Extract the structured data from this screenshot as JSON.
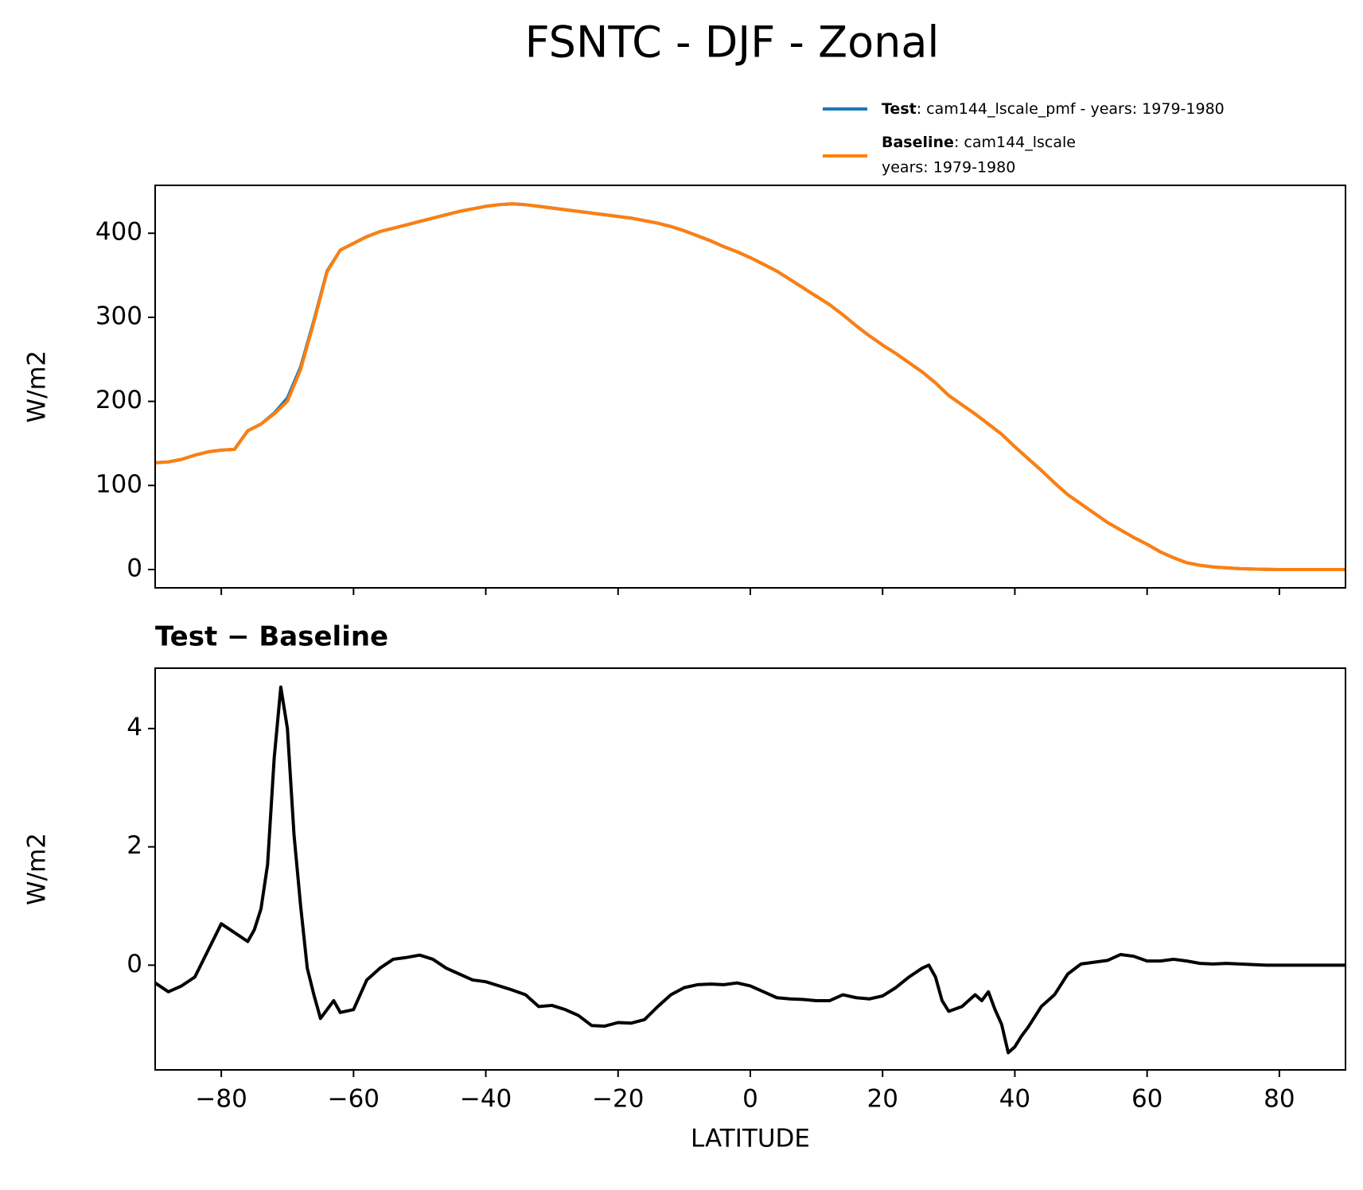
{
  "title": "FSNTC - DJF - Zonal",
  "chart_data": [
    {
      "type": "line",
      "ylabel": "W/m2",
      "x": [
        -90,
        -88,
        -86,
        -84,
        -82,
        -80,
        -78,
        -76,
        -74,
        -72,
        -70,
        -68,
        -66,
        -64,
        -62,
        -60,
        -58,
        -56,
        -54,
        -52,
        -50,
        -48,
        -46,
        -44,
        -42,
        -40,
        -38,
        -36,
        -34,
        -32,
        -30,
        -28,
        -26,
        -24,
        -22,
        -20,
        -18,
        -16,
        -14,
        -12,
        -10,
        -8,
        -6,
        -4,
        -2,
        0,
        2,
        4,
        6,
        8,
        10,
        12,
        14,
        16,
        18,
        20,
        22,
        24,
        26,
        28,
        30,
        32,
        34,
        36,
        38,
        40,
        42,
        44,
        46,
        48,
        50,
        52,
        54,
        56,
        58,
        60,
        62,
        64,
        66,
        68,
        70,
        72,
        74,
        76,
        78,
        80,
        82,
        84,
        86,
        88,
        90
      ],
      "series": [
        {
          "name": "Test",
          "label": ": cam144_lscale_pmf - years: 1979-1980",
          "color": "#1f77b4",
          "values": [
            127,
            128,
            131,
            136,
            140,
            142,
            143,
            165,
            173,
            186,
            204,
            241,
            296,
            355,
            380,
            388,
            396,
            402,
            406,
            410,
            414,
            418,
            422,
            426,
            429,
            432,
            434,
            435,
            434,
            432,
            430,
            428,
            426,
            424,
            422,
            420,
            418,
            415,
            412,
            408,
            403,
            397,
            391,
            384,
            378,
            371,
            363,
            355,
            345,
            335,
            325,
            315,
            303,
            290,
            278,
            267,
            257,
            246,
            235,
            222,
            207,
            196,
            185,
            173,
            161,
            146,
            132,
            118,
            103,
            89,
            78,
            67,
            56,
            47,
            38,
            30,
            21,
            14,
            8,
            5,
            3,
            2,
            1,
            0.5,
            0.2,
            0,
            0,
            0,
            0,
            0,
            0
          ]
        },
        {
          "name": "Baseline",
          "label_lines": [
            ": cam144_lscale",
            "years: 1979-1980"
          ],
          "color": "#ff7f0e",
          "values": [
            127,
            128,
            131,
            136,
            140,
            142,
            143,
            165,
            173,
            185,
            200,
            238,
            294,
            354,
            380,
            388,
            396,
            402,
            406,
            410,
            414,
            418,
            422,
            426,
            429,
            432,
            434,
            435,
            434,
            432,
            430,
            428,
            426,
            424,
            422,
            420,
            418,
            415,
            412,
            408,
            403,
            397,
            391,
            384,
            378,
            371,
            363,
            355,
            345,
            335,
            325,
            315,
            303,
            290,
            278,
            267,
            257,
            246,
            235,
            222,
            207,
            196,
            185,
            173,
            161,
            146,
            132,
            118,
            103,
            89,
            78,
            67,
            56,
            47,
            38,
            30,
            21,
            14,
            8,
            5,
            3,
            2,
            1,
            0.5,
            0.2,
            0,
            0,
            0,
            0,
            0,
            0
          ]
        }
      ],
      "xlim": [
        -90,
        90
      ],
      "ylim": [
        -21.8,
        457
      ],
      "xticks": [
        -80,
        -60,
        -40,
        -20,
        0,
        20,
        40,
        60,
        80
      ],
      "yticks": [
        0,
        100,
        200,
        300,
        400
      ]
    },
    {
      "type": "line",
      "title": "Test − Baseline",
      "xlabel": "LATITUDE",
      "ylabel": "W/m2",
      "x": [
        -90,
        -88,
        -86,
        -84,
        -82,
        -80,
        -78,
        -76,
        -75,
        -74,
        -73,
        -72,
        -71,
        -70,
        -69,
        -68,
        -67,
        -66,
        -65,
        -64,
        -63,
        -62,
        -60,
        -58,
        -56,
        -54,
        -52,
        -50,
        -48,
        -46,
        -44,
        -42,
        -40,
        -38,
        -36,
        -34,
        -32,
        -30,
        -28,
        -26,
        -24,
        -22,
        -20,
        -18,
        -16,
        -14,
        -12,
        -10,
        -8,
        -6,
        -4,
        -2,
        0,
        2,
        4,
        6,
        8,
        10,
        12,
        14,
        16,
        18,
        20,
        22,
        24,
        26,
        27,
        28,
        29,
        30,
        32,
        34,
        35,
        36,
        37,
        38,
        39,
        40,
        41,
        42,
        44,
        46,
        48,
        50,
        52,
        54,
        56,
        58,
        60,
        62,
        64,
        66,
        68,
        70,
        72,
        74,
        76,
        78,
        80,
        82,
        84,
        86,
        88,
        90
      ],
      "series": [
        {
          "color": "#000000",
          "values": [
            -0.3,
            -0.45,
            -0.35,
            -0.2,
            0.25,
            0.7,
            0.55,
            0.4,
            0.6,
            0.95,
            1.7,
            3.5,
            4.7,
            4.0,
            2.2,
            1.0,
            -0.05,
            -0.5,
            -0.9,
            -0.75,
            -0.6,
            -0.8,
            -0.75,
            -0.25,
            -0.05,
            0.1,
            0.13,
            0.17,
            0.1,
            -0.05,
            -0.15,
            -0.25,
            -0.28,
            -0.35,
            -0.42,
            -0.5,
            -0.7,
            -0.68,
            -0.75,
            -0.85,
            -1.02,
            -1.03,
            -0.97,
            -0.98,
            -0.92,
            -0.7,
            -0.5,
            -0.38,
            -0.33,
            -0.32,
            -0.33,
            -0.3,
            -0.35,
            -0.45,
            -0.55,
            -0.57,
            -0.58,
            -0.6,
            -0.6,
            -0.5,
            -0.55,
            -0.57,
            -0.52,
            -0.38,
            -0.2,
            -0.05,
            0,
            -0.2,
            -0.6,
            -0.78,
            -0.7,
            -0.5,
            -0.6,
            -0.45,
            -0.75,
            -1.0,
            -1.48,
            -1.38,
            -1.2,
            -1.05,
            -0.7,
            -0.5,
            -0.15,
            0.02,
            0.05,
            0.08,
            0.18,
            0.15,
            0.07,
            0.07,
            0.1,
            0.07,
            0.03,
            0.02,
            0.03,
            0.02,
            0.01,
            0,
            0,
            0,
            0,
            0,
            0,
            0
          ]
        }
      ],
      "xlim": [
        -90,
        90
      ],
      "ylim": [
        -1.77,
        5.02
      ],
      "xticks": [
        {
          "value": -80,
          "label": "−80"
        },
        {
          "value": -60,
          "label": "−60"
        },
        {
          "value": -40,
          "label": "−40"
        },
        {
          "value": -20,
          "label": "−20"
        },
        0,
        20,
        40,
        60,
        80
      ],
      "yticks": [
        0,
        2,
        4
      ]
    }
  ]
}
